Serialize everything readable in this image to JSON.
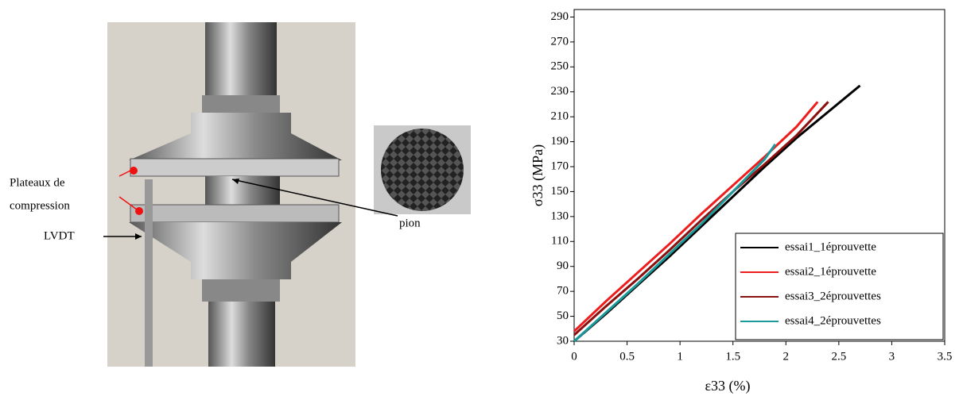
{
  "photo": {
    "annotations": [
      "Plateaux de",
      "compression",
      "LVDT",
      "pion"
    ]
  },
  "chart_data": {
    "type": "line",
    "xlabel": "ε33  (%)",
    "ylabel": "σ33 (MPa)",
    "xlim": [
      0,
      3.5
    ],
    "xticks": [
      0,
      0.5,
      1,
      1.5,
      2,
      2.5,
      3,
      3.5
    ],
    "ylim": [
      30,
      296
    ],
    "yticks": [
      30,
      50,
      70,
      90,
      110,
      130,
      150,
      170,
      190,
      210,
      230,
      250,
      270,
      290
    ],
    "legend": "lower right",
    "series": [
      {
        "name": "essai1_1éprouvette",
        "color": "#000000",
        "x": [
          0,
          0.3,
          0.6,
          0.9,
          1.2,
          1.5,
          1.8,
          2.1,
          2.4,
          2.7
        ],
        "values": [
          30,
          52,
          75,
          98,
          122,
          146,
          170,
          193,
          214,
          235
        ]
      },
      {
        "name": "essai2_1éprouvette",
        "color": "#ee1c1c",
        "x": [
          0,
          0.3,
          0.6,
          0.9,
          1.2,
          1.5,
          1.8,
          2.1,
          2.3
        ],
        "values": [
          38,
          62,
          85,
          108,
          132,
          155,
          178,
          202,
          222
        ]
      },
      {
        "name": "essai3_2éprouvettes",
        "color": "#8b1010",
        "x": [
          0,
          0.3,
          0.6,
          0.9,
          1.2,
          1.5,
          1.8,
          2.1,
          2.4
        ],
        "values": [
          35,
          58,
          80,
          103,
          127,
          150,
          172,
          195,
          222
        ]
      },
      {
        "name": "essai4_2éprouvettes",
        "color": "#1a9a9a",
        "x": [
          0,
          0.3,
          0.6,
          0.9,
          1.2,
          1.5,
          1.8,
          1.9
        ],
        "values": [
          30,
          53,
          76,
          100,
          124,
          150,
          176,
          188
        ]
      }
    ]
  }
}
